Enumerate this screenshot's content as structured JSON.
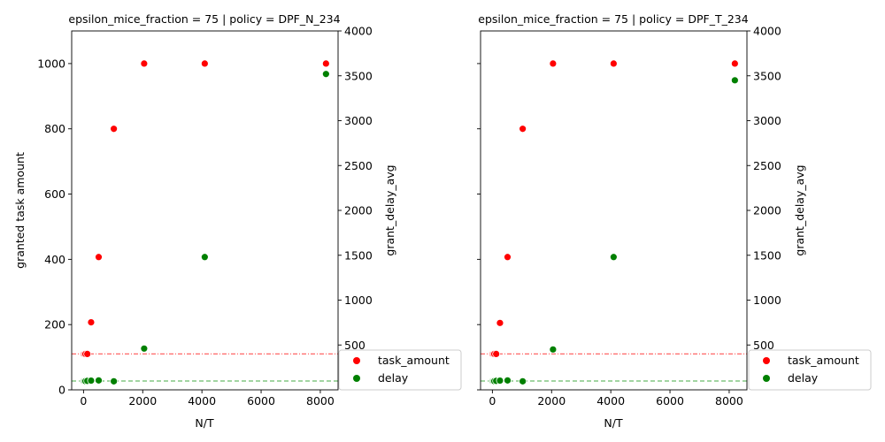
{
  "chart_data": [
    {
      "type": "scatter",
      "title": "epsilon_mice_fraction = 75 | policy = DPF_N_234",
      "xlabel": "N/T",
      "ylabel": "granted task amount",
      "y2label": "grant_delay_avg",
      "xlim": [
        -400,
        8600
      ],
      "ylim": [
        0,
        1100
      ],
      "y2lim": [
        0,
        4000
      ],
      "xticks": [
        0,
        2000,
        4000,
        6000,
        8000
      ],
      "yticks": [
        0,
        200,
        400,
        600,
        800,
        1000
      ],
      "y2ticks": [
        500,
        1000,
        1500,
        2000,
        2500,
        3000,
        3500,
        4000
      ],
      "hline_task": 110,
      "hline_delay": 27,
      "task_series": {
        "name": "task_amount",
        "color": "#ff0000",
        "x": [
          0,
          32,
          64,
          128,
          256,
          512,
          1024,
          2048,
          4096,
          8192
        ],
        "y": [
          110,
          110,
          110,
          110,
          207,
          407,
          800,
          1000,
          1000,
          1000
        ]
      },
      "delay_series": {
        "name": "delay",
        "color": "#008000",
        "x": [
          0,
          32,
          64,
          128,
          256,
          512,
          1024,
          2048,
          4096,
          8192
        ],
        "y": [
          97,
          97,
          97,
          100,
          103,
          105,
          95,
          460,
          1480,
          3520
        ]
      }
    },
    {
      "type": "scatter",
      "title": "epsilon_mice_fraction = 75 | policy = DPF_T_234",
      "xlabel": "N/T",
      "ylabel": "",
      "y2label": "grant_delay_avg",
      "xlim": [
        -400,
        8600
      ],
      "ylim": [
        0,
        1100
      ],
      "y2lim": [
        0,
        4000
      ],
      "xticks": [
        0,
        2000,
        4000,
        6000,
        8000
      ],
      "yticks": [
        0,
        200,
        400,
        600,
        800,
        1000
      ],
      "y2ticks": [
        500,
        1000,
        1500,
        2000,
        2500,
        3000,
        3500,
        4000
      ],
      "hline_task": 110,
      "hline_delay": 27,
      "task_series": {
        "name": "task_amount",
        "color": "#ff0000",
        "x": [
          0,
          32,
          64,
          128,
          256,
          512,
          1024,
          2048,
          4096,
          8192
        ],
        "y": [
          110,
          110,
          110,
          110,
          205,
          407,
          800,
          1000,
          1000,
          1000
        ]
      },
      "delay_series": {
        "name": "delay",
        "color": "#008000",
        "x": [
          0,
          32,
          64,
          128,
          256,
          512,
          1024,
          2048,
          4096,
          8192
        ],
        "y": [
          97,
          97,
          97,
          100,
          103,
          105,
          95,
          450,
          1480,
          3450
        ]
      }
    }
  ],
  "legend": {
    "items": [
      {
        "label": "task_amount",
        "color": "#ff0000"
      },
      {
        "label": "delay",
        "color": "#008000"
      }
    ]
  }
}
